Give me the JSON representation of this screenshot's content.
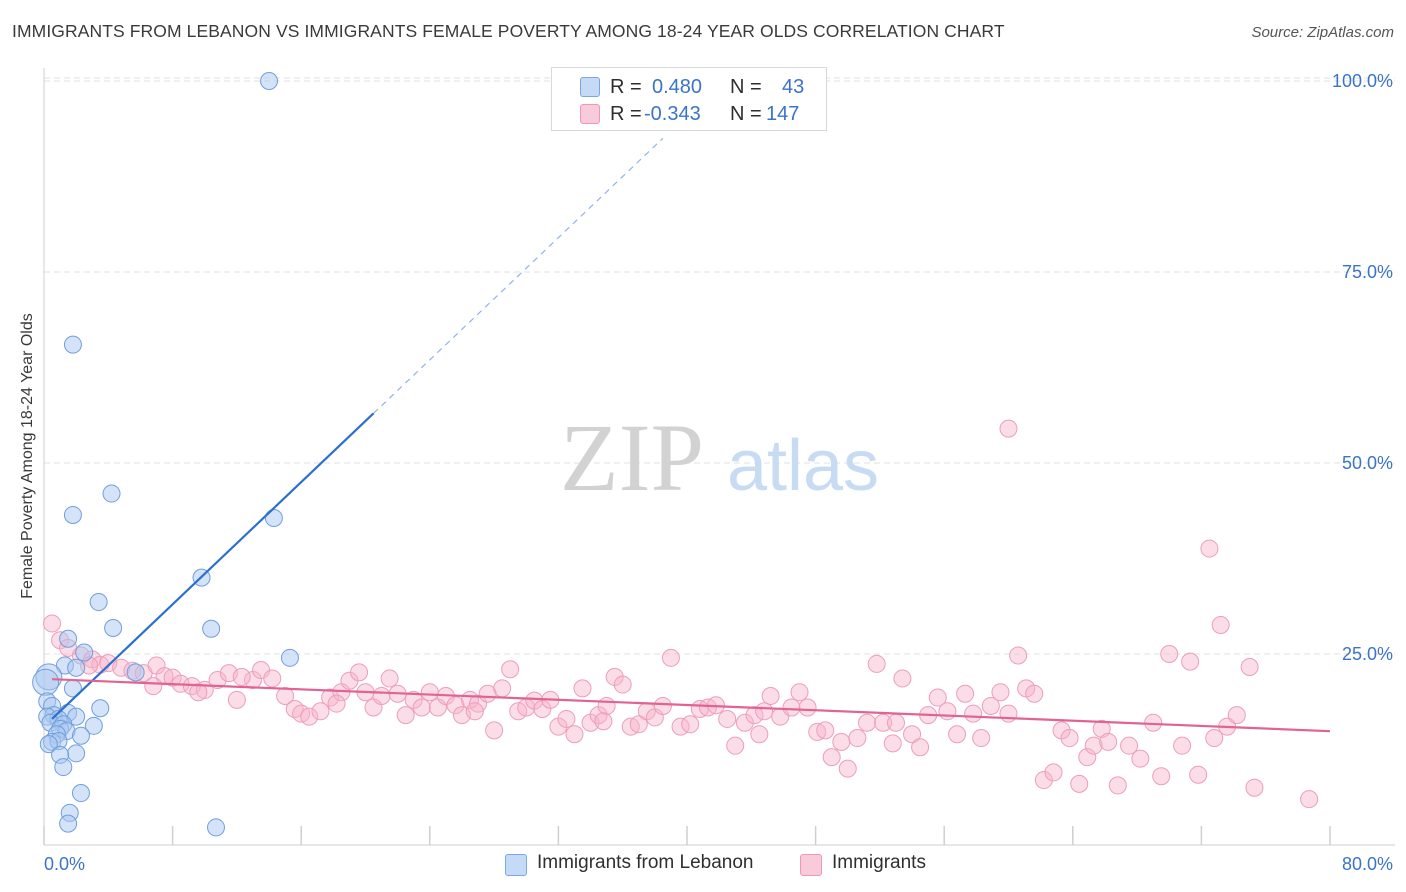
{
  "title": "IMMIGRANTS FROM LEBANON VS IMMIGRANTS FEMALE POVERTY AMONG 18-24 YEAR OLDS CORRELATION CHART",
  "source": "Source: ZipAtlas.com",
  "watermark": {
    "zip": "ZIP",
    "atlas": "atlas"
  },
  "legend": {
    "rows": [
      {
        "r_label": "R =",
        "r_value": "0.480",
        "n_label": "N =",
        "n_value": "43",
        "color": "#a9c8f0"
      },
      {
        "r_label": "R =",
        "r_value": "-0.343",
        "n_label": "N =",
        "n_value": "147",
        "color": "#f6b4c9"
      }
    ]
  },
  "bottom_legend": {
    "items": [
      {
        "label": "Immigrants from Lebanon",
        "color": "#a9c8f0"
      },
      {
        "label": "Immigrants",
        "color": "#f6b4c9"
      }
    ]
  },
  "chart_data": {
    "type": "scatter",
    "ylabel": "Female Poverty Among 18-24 Year Olds",
    "xlim": [
      0,
      80
    ],
    "ylim": [
      0,
      105
    ],
    "x_tick_labels": [
      "0.0%",
      "80.0%"
    ],
    "y_tick_labels": [
      "25.0%",
      "50.0%",
      "75.0%",
      "100.0%"
    ],
    "y_ticks": [
      25,
      50,
      75,
      100
    ],
    "grid": true,
    "series": [
      {
        "name": "Immigrants from Lebanon",
        "color": "#4a86d8",
        "fill": "#a9c8f0",
        "trend": {
          "x0": 0.5,
          "y0": 16.5,
          "x1": 20.5,
          "y1": 56.5,
          "dash_to_x": 38.5,
          "dash_to_y": 92.5,
          "color": "#2b6fcf"
        },
        "points": [
          [
            14.0,
            100.0
          ],
          [
            1.8,
            65.5
          ],
          [
            4.2,
            46.0
          ],
          [
            1.8,
            43.2
          ],
          [
            14.3,
            42.8
          ],
          [
            9.8,
            35.0
          ],
          [
            3.4,
            31.8
          ],
          [
            4.3,
            28.4
          ],
          [
            10.4,
            28.3
          ],
          [
            1.5,
            27.0
          ],
          [
            2.5,
            25.2
          ],
          [
            15.3,
            24.5
          ],
          [
            1.3,
            23.5
          ],
          [
            2.0,
            23.2
          ],
          [
            5.7,
            22.6
          ],
          [
            0.3,
            22.0
          ],
          [
            0.1,
            21.3
          ],
          [
            1.8,
            20.5
          ],
          [
            0.2,
            18.8
          ],
          [
            0.5,
            18.2
          ],
          [
            3.5,
            17.9
          ],
          [
            1.5,
            17.3
          ],
          [
            0.6,
            17.0
          ],
          [
            0.2,
            16.8
          ],
          [
            0.9,
            16.5
          ],
          [
            2.0,
            16.8
          ],
          [
            0.4,
            16.0
          ],
          [
            1.2,
            15.8
          ],
          [
            3.1,
            15.6
          ],
          [
            1.0,
            15.2
          ],
          [
            1.4,
            14.9
          ],
          [
            0.8,
            14.5
          ],
          [
            2.3,
            14.3
          ],
          [
            0.5,
            13.5
          ],
          [
            0.9,
            13.6
          ],
          [
            0.3,
            13.2
          ],
          [
            2.0,
            12.0
          ],
          [
            1.0,
            11.8
          ],
          [
            1.2,
            10.2
          ],
          [
            2.3,
            6.8
          ],
          [
            1.6,
            4.2
          ],
          [
            1.5,
            2.8
          ],
          [
            10.7,
            2.3
          ]
        ]
      },
      {
        "name": "Immigrants",
        "color": "#e46d98",
        "fill": "#f6b4c9",
        "trend": {
          "x0": 0.5,
          "y0": 21.7,
          "x1": 80.0,
          "y1": 14.9,
          "color": "#e06393"
        },
        "points": [
          [
            60.0,
            54.5
          ],
          [
            72.5,
            38.8
          ],
          [
            73.2,
            28.8
          ],
          [
            0.5,
            29.0
          ],
          [
            1.0,
            26.8
          ],
          [
            1.5,
            25.8
          ],
          [
            2.3,
            24.8
          ],
          [
            3.0,
            24.3
          ],
          [
            3.5,
            23.6
          ],
          [
            4.0,
            23.8
          ],
          [
            4.8,
            23.2
          ],
          [
            5.5,
            22.8
          ],
          [
            6.2,
            22.5
          ],
          [
            7.0,
            23.5
          ],
          [
            7.5,
            22.1
          ],
          [
            8.0,
            21.9
          ],
          [
            8.5,
            21.1
          ],
          [
            9.2,
            20.8
          ],
          [
            10.0,
            20.3
          ],
          [
            10.8,
            21.6
          ],
          [
            11.5,
            22.5
          ],
          [
            12.0,
            19.0
          ],
          [
            13.0,
            21.6
          ],
          [
            13.5,
            22.9
          ],
          [
            14.2,
            21.8
          ],
          [
            15.0,
            19.5
          ],
          [
            15.6,
            17.8
          ],
          [
            16.0,
            17.2
          ],
          [
            16.5,
            16.8
          ],
          [
            17.2,
            17.5
          ],
          [
            17.8,
            19.3
          ],
          [
            18.5,
            20.0
          ],
          [
            19.0,
            21.5
          ],
          [
            19.6,
            22.6
          ],
          [
            20.0,
            20.0
          ],
          [
            20.5,
            18.0
          ],
          [
            21.0,
            19.5
          ],
          [
            21.5,
            21.8
          ],
          [
            22.0,
            19.8
          ],
          [
            22.5,
            17.0
          ],
          [
            23.0,
            19.0
          ],
          [
            23.5,
            18.0
          ],
          [
            24.0,
            20.0
          ],
          [
            24.5,
            18.0
          ],
          [
            25.0,
            19.5
          ],
          [
            25.6,
            18.3
          ],
          [
            26.0,
            17.0
          ],
          [
            26.5,
            19.0
          ],
          [
            27.0,
            18.5
          ],
          [
            27.6,
            19.8
          ],
          [
            28.0,
            15.0
          ],
          [
            28.5,
            20.5
          ],
          [
            29.0,
            23.0
          ],
          [
            29.5,
            17.5
          ],
          [
            30.0,
            18.0
          ],
          [
            30.5,
            18.9
          ],
          [
            31.0,
            17.8
          ],
          [
            31.5,
            19.0
          ],
          [
            32.0,
            15.5
          ],
          [
            32.5,
            16.5
          ],
          [
            33.0,
            14.5
          ],
          [
            33.5,
            20.5
          ],
          [
            34.0,
            16.0
          ],
          [
            34.5,
            17.0
          ],
          [
            35.0,
            18.2
          ],
          [
            35.5,
            22.0
          ],
          [
            36.0,
            21.0
          ],
          [
            36.5,
            15.5
          ],
          [
            37.0,
            15.8
          ],
          [
            37.5,
            17.5
          ],
          [
            38.0,
            16.7
          ],
          [
            38.5,
            18.2
          ],
          [
            39.0,
            24.5
          ],
          [
            39.6,
            15.5
          ],
          [
            40.2,
            15.8
          ],
          [
            40.8,
            17.8
          ],
          [
            41.3,
            18.0
          ],
          [
            41.8,
            18.3
          ],
          [
            42.5,
            16.5
          ],
          [
            43.0,
            13.0
          ],
          [
            43.6,
            16.0
          ],
          [
            44.2,
            17.0
          ],
          [
            44.8,
            17.5
          ],
          [
            45.2,
            19.5
          ],
          [
            45.8,
            16.8
          ],
          [
            46.5,
            18.0
          ],
          [
            47.0,
            20.0
          ],
          [
            47.5,
            18.0
          ],
          [
            48.1,
            14.8
          ],
          [
            48.6,
            15.0
          ],
          [
            49.0,
            11.5
          ],
          [
            49.6,
            13.5
          ],
          [
            50.0,
            10.0
          ],
          [
            50.6,
            14.0
          ],
          [
            51.2,
            16.0
          ],
          [
            51.8,
            23.7
          ],
          [
            52.2,
            16.0
          ],
          [
            52.8,
            13.3
          ],
          [
            53.4,
            21.8
          ],
          [
            54.0,
            14.5
          ],
          [
            54.5,
            12.8
          ],
          [
            55.0,
            17.0
          ],
          [
            55.6,
            19.3
          ],
          [
            56.2,
            17.5
          ],
          [
            56.8,
            14.5
          ],
          [
            57.3,
            19.8
          ],
          [
            57.8,
            17.2
          ],
          [
            58.3,
            14.0
          ],
          [
            58.9,
            18.2
          ],
          [
            59.5,
            20.0
          ],
          [
            60.0,
            17.2
          ],
          [
            60.6,
            24.8
          ],
          [
            61.1,
            20.5
          ],
          [
            61.6,
            19.8
          ],
          [
            62.2,
            8.5
          ],
          [
            62.8,
            9.5
          ],
          [
            63.3,
            15.0
          ],
          [
            63.8,
            14.0
          ],
          [
            64.4,
            8.0
          ],
          [
            64.9,
            11.5
          ],
          [
            65.3,
            13.0
          ],
          [
            65.8,
            15.2
          ],
          [
            66.2,
            13.5
          ],
          [
            66.8,
            7.8
          ],
          [
            67.5,
            13.0
          ],
          [
            68.2,
            11.3
          ],
          [
            69.0,
            16.0
          ],
          [
            69.5,
            9.0
          ],
          [
            70.0,
            25.0
          ],
          [
            70.8,
            13.0
          ],
          [
            71.3,
            24.0
          ],
          [
            71.8,
            9.2
          ],
          [
            72.8,
            14.0
          ],
          [
            73.6,
            15.5
          ],
          [
            74.2,
            17.0
          ],
          [
            75.0,
            23.3
          ],
          [
            75.3,
            7.5
          ],
          [
            78.7,
            6.0
          ],
          [
            2.8,
            23.5
          ],
          [
            6.8,
            20.8
          ],
          [
            9.6,
            20.0
          ],
          [
            12.3,
            22.0
          ],
          [
            18.2,
            18.5
          ],
          [
            26.8,
            17.5
          ],
          [
            34.8,
            16.2
          ],
          [
            44.5,
            14.5
          ],
          [
            53.0,
            16.0
          ]
        ]
      }
    ]
  }
}
